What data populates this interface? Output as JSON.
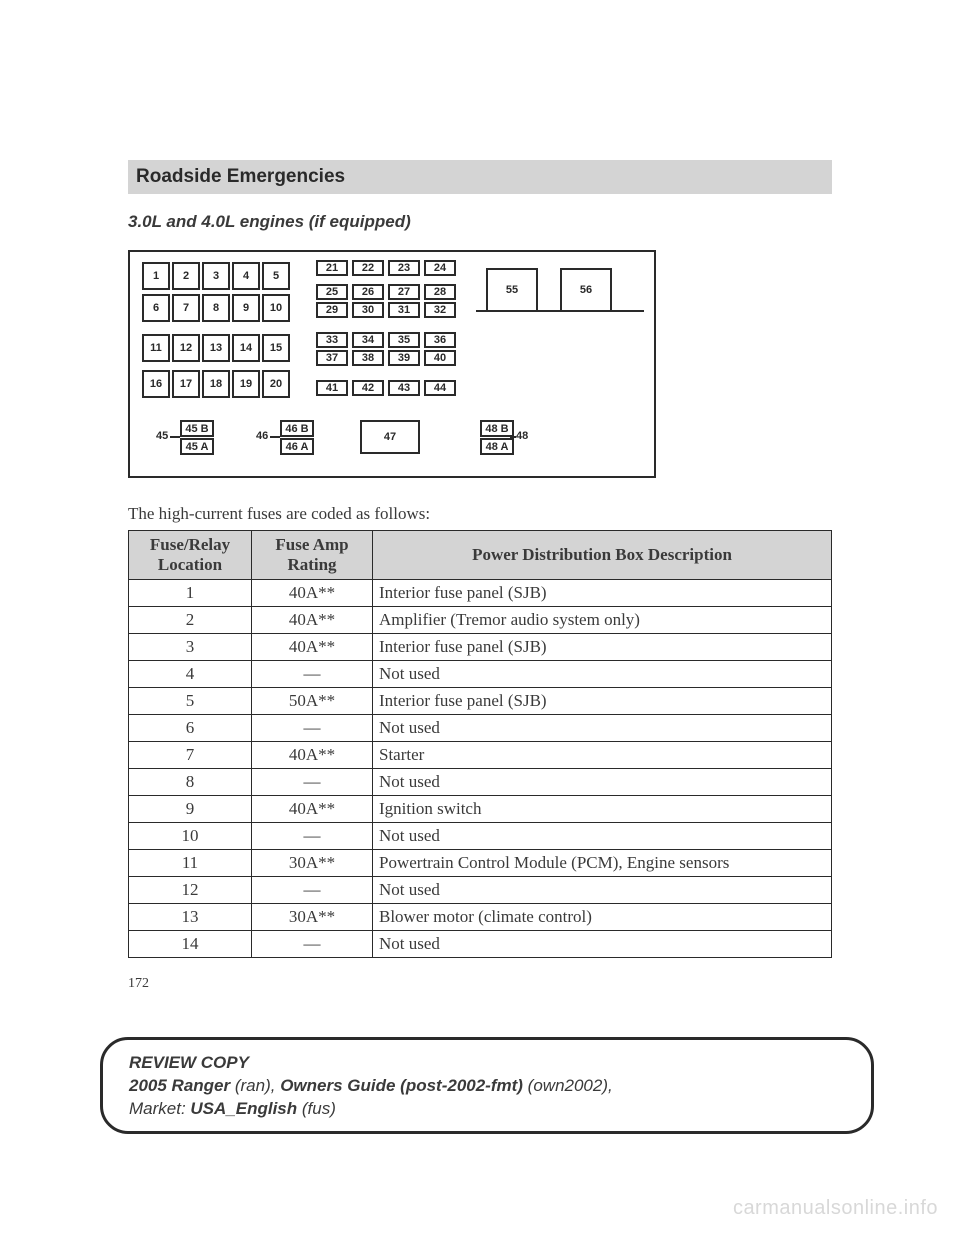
{
  "header": {
    "section_title": "Roadside Emergencies",
    "subheading": "3.0L and 4.0L engines (if equipped)"
  },
  "diagram": {
    "grid_large": [
      [
        "1",
        "2",
        "3",
        "4",
        "5"
      ],
      [
        "6",
        "7",
        "8",
        "9",
        "10"
      ],
      [
        "11",
        "12",
        "13",
        "14",
        "15"
      ],
      [
        "16",
        "17",
        "18",
        "19",
        "20"
      ]
    ],
    "grid_small_rows": [
      [
        "21",
        "22",
        "23",
        "24"
      ],
      [
        "25",
        "26",
        "27",
        "28"
      ],
      [
        "29",
        "30",
        "31",
        "32"
      ],
      [
        "33",
        "34",
        "35",
        "36"
      ],
      [
        "37",
        "38",
        "39",
        "40"
      ],
      [
        "41",
        "42",
        "43",
        "44"
      ]
    ],
    "big_right": [
      "55",
      "56"
    ],
    "bottom_groups": [
      {
        "label": "45",
        "top": "45 B",
        "bot": "45 A"
      },
      {
        "label": "46",
        "top": "46 B",
        "bot": "46 A"
      },
      {
        "label": "47"
      },
      {
        "label": "48",
        "top": "48 B",
        "bot": "48 A"
      }
    ]
  },
  "intro_text": "The high-current fuses are coded as follows:",
  "table": {
    "columns": [
      "Fuse/Relay Location",
      "Fuse Amp Rating",
      "Power Distribution Box Description"
    ],
    "col_widths": [
      "110px",
      "108px",
      "auto"
    ],
    "rows": [
      [
        "1",
        "40A**",
        "Interior fuse panel (SJB)"
      ],
      [
        "2",
        "40A**",
        "Amplifier (Tremor audio system only)"
      ],
      [
        "3",
        "40A**",
        "Interior fuse panel (SJB)"
      ],
      [
        "4",
        "—",
        "Not used"
      ],
      [
        "5",
        "50A**",
        "Interior fuse panel (SJB)"
      ],
      [
        "6",
        "—",
        "Not used"
      ],
      [
        "7",
        "40A**",
        "Starter"
      ],
      [
        "8",
        "—",
        "Not used"
      ],
      [
        "9",
        "40A**",
        "Ignition switch"
      ],
      [
        "10",
        "—",
        "Not used"
      ],
      [
        "11",
        "30A**",
        "Powertrain Control Module (PCM), Engine sensors"
      ],
      [
        "12",
        "—",
        "Not used"
      ],
      [
        "13",
        "30A**",
        "Blower motor (climate control)"
      ],
      [
        "14",
        "—",
        "Not used"
      ]
    ]
  },
  "page_number": "172",
  "footer": {
    "line1a": "REVIEW COPY",
    "line2a": "2005 Ranger",
    "line2b": " (ran), ",
    "line2c": "Owners Guide (post-2002-fmt)",
    "line2d": " (own2002),",
    "line3a": "Market: ",
    "line3b": "USA_English",
    "line3c": " (fus)"
  },
  "watermark": "carmanualsonline.info",
  "colors": {
    "header_bg": "#d4d4d4",
    "border": "#2a2a2a",
    "text": "#3a3a3a",
    "watermark": "#d8d8d8"
  }
}
